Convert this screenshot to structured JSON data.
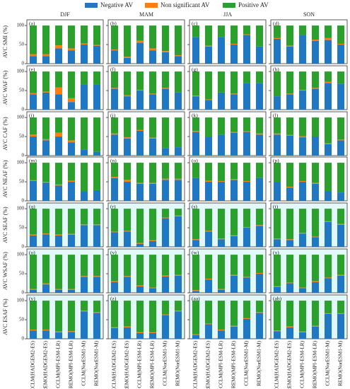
{
  "chart_data": {
    "type": "bar",
    "stacked": true,
    "legend": [
      {
        "name": "Negative AV",
        "color": "#1f78c1"
      },
      {
        "name": "Non significant AV",
        "color": "#ff7f0e"
      },
      {
        "name": "Positive AV",
        "color": "#2ca02c"
      }
    ],
    "categories": [
      "CCLM(HADGEM2-ES)",
      "REMO(HADGEM2-ES)",
      "CCLM(MPI-ESM-LR)",
      "REMO(MPI-ESM-LR)",
      "CCLM(NorESM1-M)",
      "REMO(NorESM1-M)"
    ],
    "column_titles": [
      "DJF",
      "MAM",
      "JJA",
      "SON"
    ],
    "row_labels": [
      "AVC SMI (%)",
      "AVC WAF (%)",
      "AVC CAF (%)",
      "AVC NEAF (%)",
      "AVC SEAF (%)",
      "AVC WSAF (%)",
      "AVC ESAF (%)"
    ],
    "ylim": [
      0,
      115
    ],
    "yticks": [
      0,
      50,
      100
    ],
    "panels": [
      {
        "label": "(a)",
        "series": [
          [
            20,
            20,
            40,
            35,
            50,
            47
          ],
          [
            5,
            5,
            8,
            5,
            3,
            2
          ],
          [
            75,
            75,
            52,
            60,
            47,
            51
          ]
        ]
      },
      {
        "label": "(b)",
        "series": [
          [
            35,
            15,
            55,
            35,
            30,
            20
          ],
          [
            2,
            3,
            5,
            5,
            3,
            2
          ],
          [
            63,
            82,
            40,
            60,
            67,
            78
          ]
        ]
      },
      {
        "label": "(c)",
        "series": [
          [
            70,
            45,
            70,
            50,
            75,
            45
          ],
          [
            0,
            2,
            0,
            2,
            2,
            0
          ],
          [
            30,
            53,
            30,
            48,
            23,
            55
          ]
        ]
      },
      {
        "label": "(d)",
        "series": [
          [
            65,
            45,
            75,
            60,
            62,
            50
          ],
          [
            2,
            2,
            0,
            3,
            5,
            2
          ],
          [
            33,
            53,
            25,
            37,
            33,
            48
          ]
        ]
      },
      {
        "label": "(e)",
        "series": [
          [
            40,
            45,
            40,
            20,
            65,
            65
          ],
          [
            3,
            2,
            18,
            10,
            0,
            0
          ],
          [
            57,
            53,
            42,
            70,
            35,
            35
          ]
        ]
      },
      {
        "label": "(f)",
        "series": [
          [
            55,
            35,
            50,
            40,
            55,
            45
          ],
          [
            2,
            3,
            2,
            2,
            2,
            0
          ],
          [
            43,
            62,
            48,
            58,
            43,
            55
          ]
        ]
      },
      {
        "label": "(g)",
        "series": [
          [
            35,
            25,
            45,
            40,
            70,
            70
          ],
          [
            2,
            2,
            0,
            2,
            0,
            0
          ],
          [
            63,
            73,
            55,
            58,
            30,
            30
          ]
        ]
      },
      {
        "label": "(h)",
        "series": [
          [
            35,
            40,
            50,
            55,
            70,
            68
          ],
          [
            0,
            2,
            2,
            2,
            3,
            0
          ],
          [
            65,
            58,
            48,
            43,
            27,
            32
          ]
        ]
      },
      {
        "label": "(i)",
        "series": [
          [
            50,
            40,
            50,
            35,
            15,
            10
          ],
          [
            5,
            3,
            10,
            5,
            0,
            0
          ],
          [
            45,
            57,
            40,
            60,
            85,
            90
          ]
        ]
      },
      {
        "label": "(j)",
        "series": [
          [
            55,
            45,
            65,
            45,
            20,
            22
          ],
          [
            3,
            3,
            2,
            2,
            0,
            0
          ],
          [
            42,
            52,
            33,
            53,
            80,
            78
          ]
        ]
      },
      {
        "label": "(k)",
        "series": [
          [
            62,
            50,
            55,
            60,
            62,
            55
          ],
          [
            3,
            0,
            0,
            2,
            2,
            3
          ],
          [
            35,
            50,
            45,
            38,
            36,
            42
          ]
        ]
      },
      {
        "label": "(l)",
        "series": [
          [
            55,
            52,
            48,
            50,
            30,
            40
          ],
          [
            3,
            2,
            3,
            0,
            2,
            2
          ],
          [
            42,
            46,
            49,
            50,
            68,
            58
          ]
        ]
      },
      {
        "label": "(m)",
        "series": [
          [
            52,
            48,
            40,
            50,
            25,
            28
          ],
          [
            2,
            2,
            3,
            3,
            0,
            0
          ],
          [
            46,
            50,
            57,
            47,
            75,
            72
          ]
        ]
      },
      {
        "label": "(n)",
        "series": [
          [
            60,
            50,
            45,
            45,
            55,
            55
          ],
          [
            3,
            5,
            2,
            2,
            3,
            3
          ],
          [
            37,
            45,
            53,
            53,
            42,
            42
          ]
        ]
      },
      {
        "label": "(o)",
        "series": [
          [
            60,
            50,
            50,
            55,
            50,
            60
          ],
          [
            0,
            3,
            2,
            2,
            2,
            0
          ],
          [
            40,
            47,
            48,
            43,
            48,
            40
          ]
        ]
      },
      {
        "label": "(p)",
        "series": [
          [
            50,
            35,
            50,
            45,
            25,
            22
          ],
          [
            0,
            2,
            2,
            2,
            0,
            0
          ],
          [
            50,
            63,
            48,
            53,
            75,
            78
          ]
        ]
      },
      {
        "label": "(q)",
        "background": "#e3f8f8",
        "series": [
          [
            30,
            33,
            30,
            32,
            57,
            57
          ],
          [
            2,
            2,
            2,
            2,
            2,
            2
          ],
          [
            68,
            65,
            68,
            66,
            41,
            41
          ]
        ]
      },
      {
        "label": "(r)",
        "background": "#e3f8f8",
        "series": [
          [
            38,
            40,
            8,
            15,
            75,
            80
          ],
          [
            2,
            2,
            2,
            2,
            2,
            2
          ],
          [
            60,
            58,
            90,
            83,
            23,
            18
          ]
        ]
      },
      {
        "label": "(s)",
        "background": "#e3f8f8",
        "series": [
          [
            18,
            40,
            20,
            28,
            50,
            55
          ],
          [
            2,
            2,
            2,
            2,
            2,
            2
          ],
          [
            80,
            58,
            78,
            70,
            48,
            43
          ]
        ]
      },
      {
        "label": "(t)",
        "background": "#e3f8f8",
        "series": [
          [
            20,
            18,
            35,
            25,
            65,
            58
          ],
          [
            2,
            2,
            2,
            2,
            2,
            2
          ],
          [
            78,
            80,
            63,
            73,
            33,
            40
          ]
        ]
      },
      {
        "label": "(u)",
        "background": "#e3f8f8",
        "series": [
          [
            8,
            22,
            8,
            8,
            42,
            42
          ],
          [
            2,
            3,
            2,
            2,
            2,
            2
          ],
          [
            90,
            75,
            90,
            90,
            56,
            56
          ]
        ]
      },
      {
        "label": "(v)",
        "background": "#e3f8f8",
        "series": [
          [
            28,
            42,
            17,
            12,
            43,
            45
          ],
          [
            2,
            2,
            2,
            2,
            2,
            2
          ],
          [
            70,
            56,
            81,
            86,
            55,
            53
          ]
        ]
      },
      {
        "label": "(w)",
        "background": "#e3f8f8",
        "series": [
          [
            5,
            35,
            8,
            45,
            40,
            50
          ],
          [
            2,
            2,
            2,
            2,
            2,
            2
          ],
          [
            93,
            63,
            90,
            53,
            58,
            48
          ]
        ]
      },
      {
        "label": "(x)",
        "background": "#e3f8f8",
        "series": [
          [
            15,
            25,
            12,
            28,
            38,
            45
          ],
          [
            2,
            2,
            2,
            2,
            2,
            2
          ],
          [
            83,
            73,
            86,
            70,
            60,
            53
          ]
        ]
      },
      {
        "label": "(y)",
        "background": "#e3f8f8",
        "series": [
          [
            22,
            22,
            17,
            18,
            72,
            68
          ],
          [
            2,
            2,
            2,
            2,
            2,
            2
          ],
          [
            76,
            76,
            81,
            80,
            26,
            30
          ]
        ]
      },
      {
        "label": "(z)",
        "background": "#e3f8f8",
        "series": [
          [
            28,
            30,
            15,
            15,
            62,
            72
          ],
          [
            2,
            2,
            2,
            2,
            2,
            2
          ],
          [
            70,
            68,
            83,
            83,
            36,
            26
          ]
        ]
      },
      {
        "label": "(aa)",
        "background": "#e3f8f8",
        "series": [
          [
            10,
            38,
            22,
            32,
            52,
            68
          ],
          [
            2,
            2,
            2,
            2,
            2,
            2
          ],
          [
            88,
            60,
            76,
            66,
            46,
            30
          ]
        ]
      },
      {
        "label": "(ab)",
        "background": "#e3f8f8",
        "series": [
          [
            20,
            30,
            17,
            32,
            65,
            65
          ],
          [
            2,
            2,
            2,
            2,
            2,
            2
          ],
          [
            78,
            68,
            81,
            66,
            33,
            33
          ]
        ]
      }
    ]
  }
}
